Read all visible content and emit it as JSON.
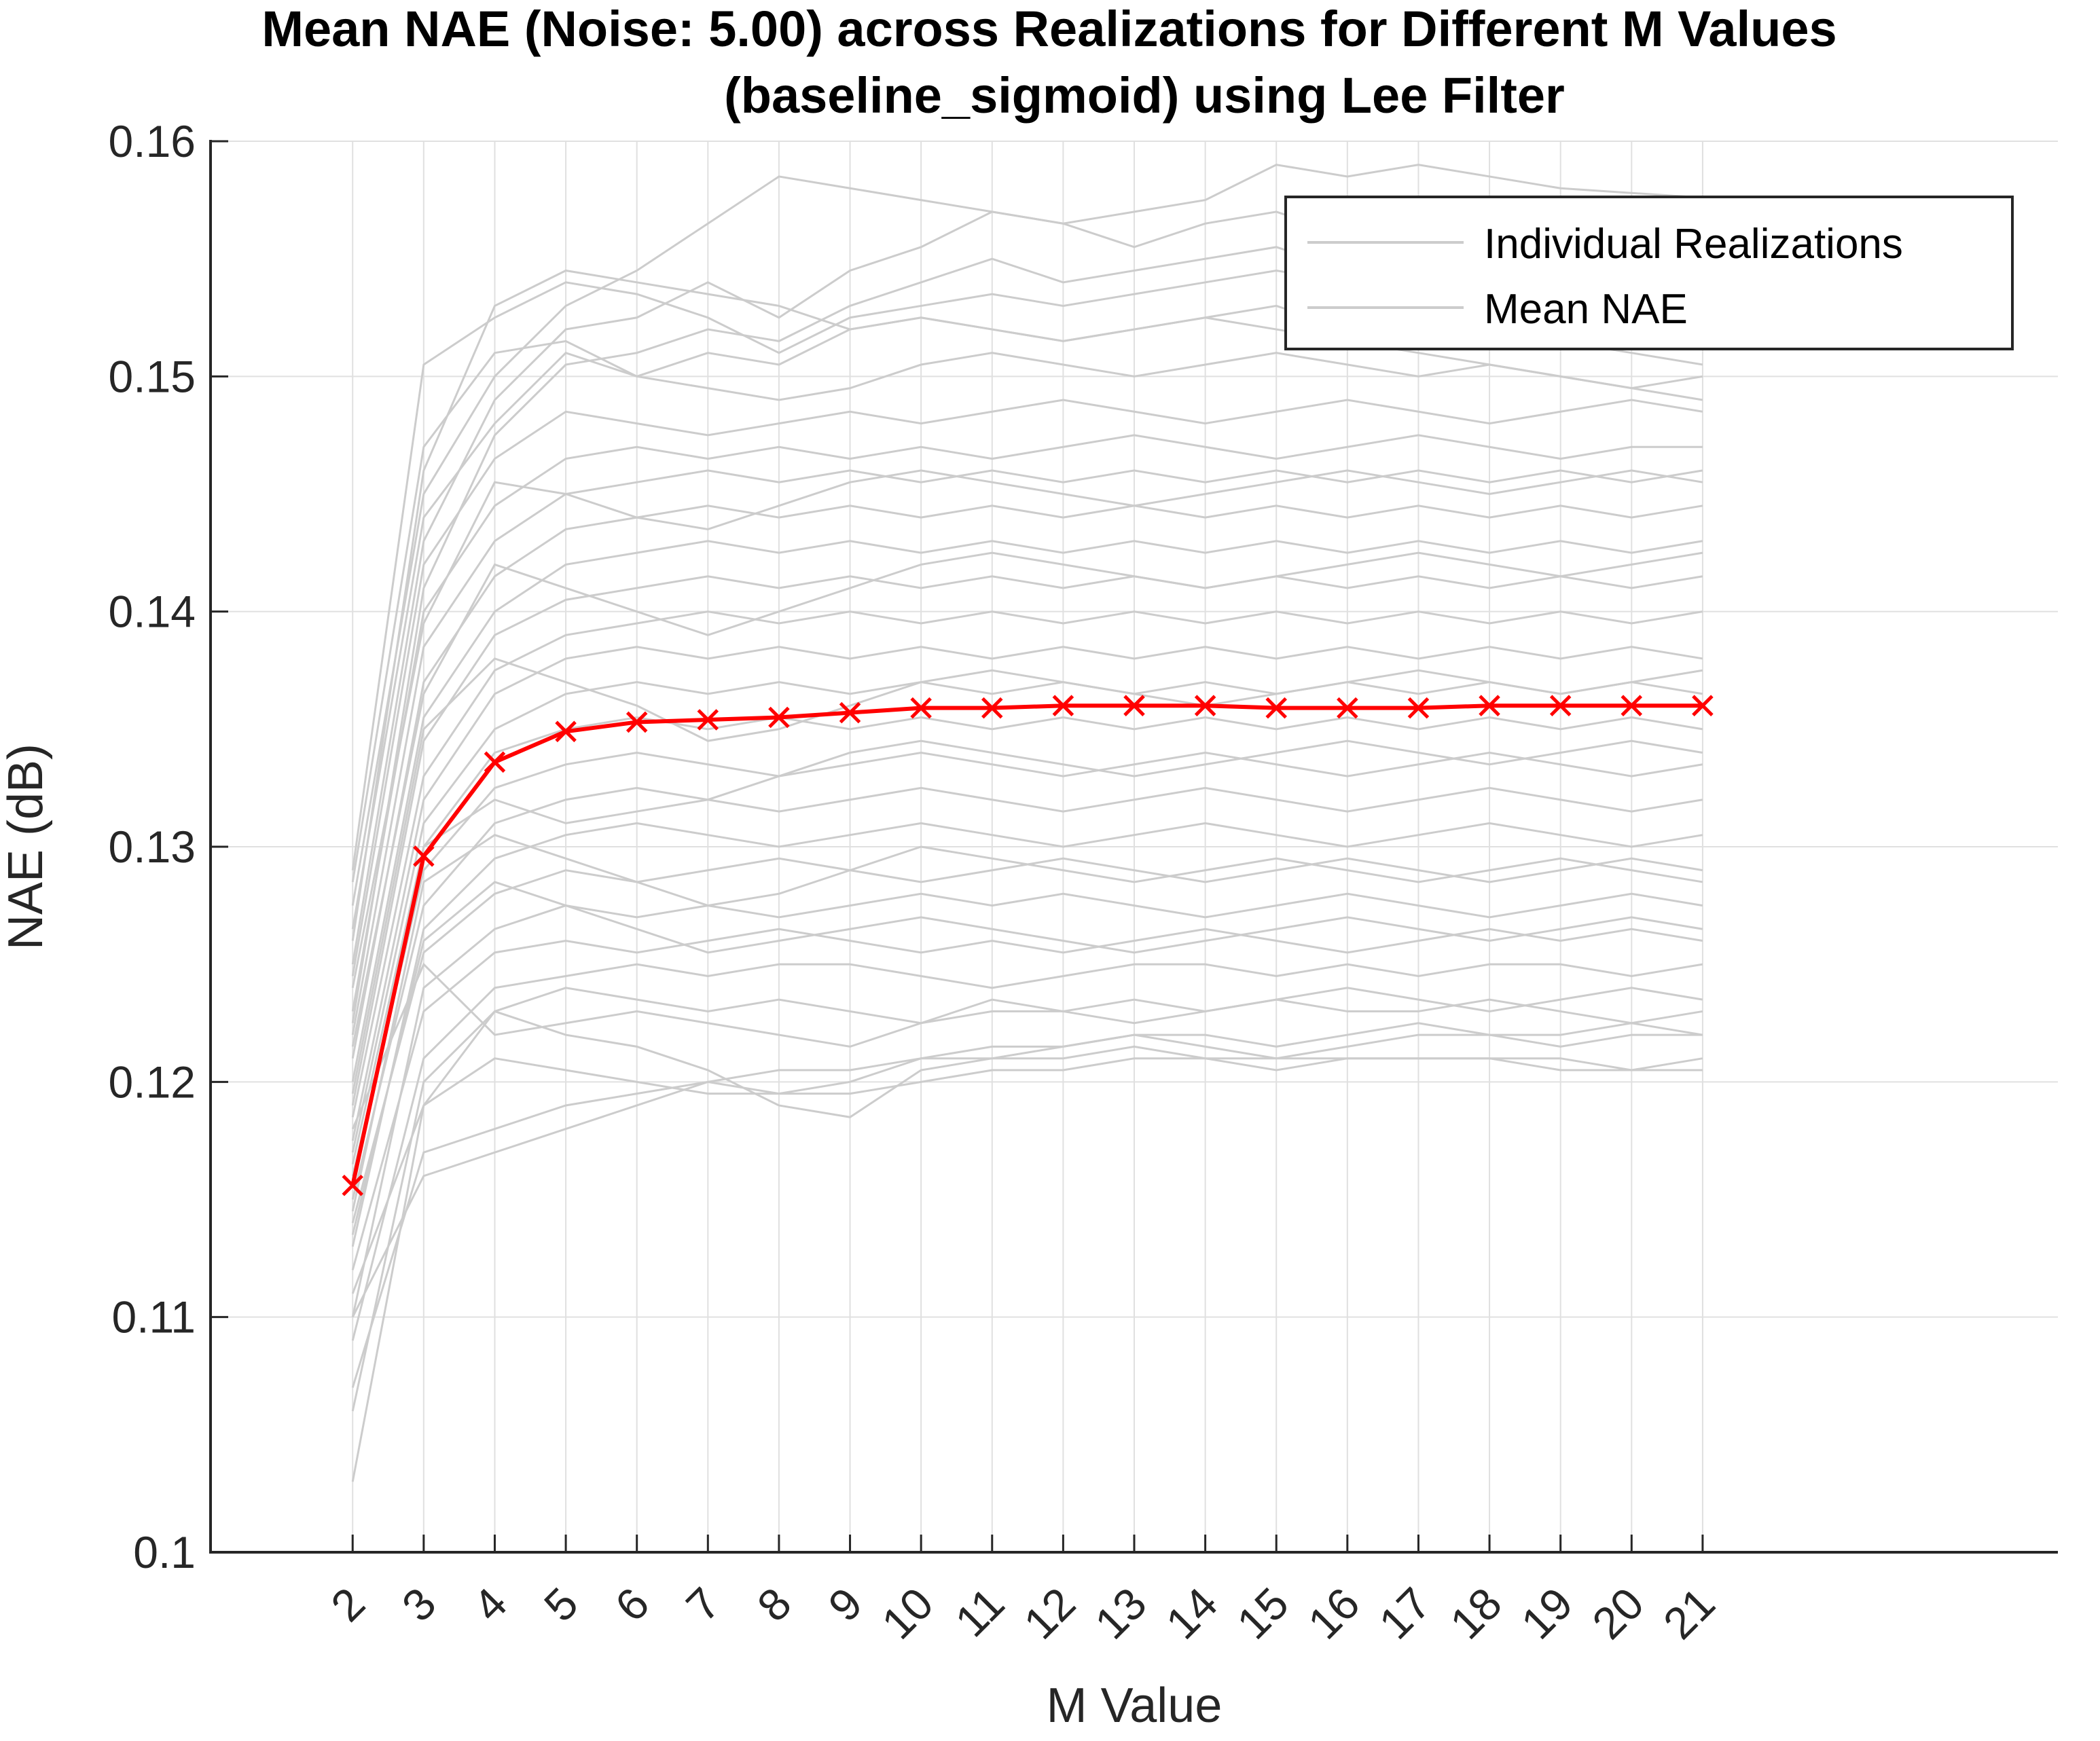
{
  "chart_data": {
    "type": "line",
    "title": "Mean NAE (Noise: 5.00) across Realizations for Different M Values",
    "subtitle": "(baseline_sigmoid) using Lee Filter",
    "xlabel": "M Value",
    "ylabel": "NAE (dB)",
    "xlim": [
      0,
      26
    ],
    "ylim": [
      0.1,
      0.16
    ],
    "x": [
      2,
      3,
      4,
      5,
      6,
      7,
      8,
      9,
      10,
      11,
      12,
      13,
      14,
      15,
      16,
      17,
      18,
      19,
      20,
      21
    ],
    "x_ticks": [
      "2",
      "3",
      "4",
      "5",
      "6",
      "7",
      "8",
      "9",
      "10",
      "11",
      "12",
      "13",
      "14",
      "15",
      "16",
      "17",
      "18",
      "19",
      "20",
      "21"
    ],
    "y_ticks": [
      "0.1",
      "0.11",
      "0.12",
      "0.13",
      "0.14",
      "0.15",
      "0.16"
    ],
    "y_tick_values": [
      0.1,
      0.11,
      0.12,
      0.13,
      0.14,
      0.15,
      0.16
    ],
    "grid": true,
    "legend_position": "top-right",
    "series": [
      {
        "name": "Mean NAE",
        "color": "#ff0000",
        "marker": "x",
        "values": [
          0.1156,
          0.1296,
          0.1336,
          0.1349,
          0.1353,
          0.1354,
          0.1355,
          0.1357,
          0.1359,
          0.1359,
          0.136,
          0.136,
          0.136,
          0.1359,
          0.1359,
          0.1359,
          0.136,
          0.136,
          0.136,
          0.136
        ]
      }
    ],
    "realizations": {
      "name": "Individual Realizations",
      "color": "#cccccc",
      "lines": [
        [
          0.103,
          0.119,
          0.121,
          0.1205,
          0.12,
          0.1195,
          0.1195,
          0.12,
          0.121,
          0.121,
          0.121,
          0.1215,
          0.121,
          0.121,
          0.121,
          0.121,
          0.121,
          0.1205,
          0.1205,
          0.1205
        ],
        [
          0.107,
          0.117,
          0.118,
          0.119,
          0.1195,
          0.12,
          0.1195,
          0.1195,
          0.12,
          0.1205,
          0.1205,
          0.121,
          0.121,
          0.1205,
          0.121,
          0.121,
          0.121,
          0.121,
          0.1205,
          0.121
        ],
        [
          0.111,
          0.119,
          0.123,
          0.122,
          0.1215,
          0.1205,
          0.119,
          0.1185,
          0.1205,
          0.121,
          0.1215,
          0.122,
          0.1215,
          0.121,
          0.1215,
          0.122,
          0.122,
          0.1215,
          0.122,
          0.122
        ],
        [
          0.106,
          0.12,
          0.123,
          0.124,
          0.1235,
          0.123,
          0.1235,
          0.123,
          0.1225,
          0.123,
          0.123,
          0.1235,
          0.123,
          0.1235,
          0.123,
          0.123,
          0.1235,
          0.123,
          0.1225,
          0.123
        ],
        [
          0.109,
          0.121,
          0.124,
          0.1245,
          0.125,
          0.1245,
          0.125,
          0.125,
          0.1245,
          0.124,
          0.1245,
          0.125,
          0.125,
          0.1245,
          0.125,
          0.1245,
          0.125,
          0.125,
          0.1245,
          0.125
        ],
        [
          0.112,
          0.123,
          0.1255,
          0.126,
          0.1255,
          0.126,
          0.1265,
          0.126,
          0.1255,
          0.126,
          0.1255,
          0.126,
          0.1265,
          0.126,
          0.1255,
          0.126,
          0.1265,
          0.126,
          0.1265,
          0.126
        ],
        [
          0.11,
          0.124,
          0.1265,
          0.1275,
          0.127,
          0.1275,
          0.127,
          0.1275,
          0.128,
          0.1275,
          0.128,
          0.1275,
          0.127,
          0.1275,
          0.128,
          0.1275,
          0.127,
          0.1275,
          0.128,
          0.1275
        ],
        [
          0.114,
          0.1255,
          0.128,
          0.129,
          0.1285,
          0.129,
          0.1295,
          0.129,
          0.1285,
          0.129,
          0.1295,
          0.129,
          0.1285,
          0.129,
          0.1295,
          0.129,
          0.1285,
          0.129,
          0.1295,
          0.129
        ],
        [
          0.113,
          0.1265,
          0.1295,
          0.1305,
          0.131,
          0.1305,
          0.13,
          0.1305,
          0.131,
          0.1305,
          0.13,
          0.1305,
          0.131,
          0.1305,
          0.13,
          0.1305,
          0.131,
          0.1305,
          0.13,
          0.1305
        ],
        [
          0.115,
          0.1275,
          0.131,
          0.132,
          0.1325,
          0.132,
          0.1315,
          0.132,
          0.1325,
          0.132,
          0.1315,
          0.132,
          0.1325,
          0.132,
          0.1315,
          0.132,
          0.1325,
          0.132,
          0.1315,
          0.132
        ],
        [
          0.116,
          0.129,
          0.1325,
          0.1335,
          0.134,
          0.1335,
          0.133,
          0.1335,
          0.134,
          0.1335,
          0.133,
          0.1335,
          0.134,
          0.1335,
          0.133,
          0.1335,
          0.134,
          0.1335,
          0.133,
          0.1335
        ],
        [
          0.1155,
          0.13,
          0.134,
          0.135,
          0.1355,
          0.135,
          0.1355,
          0.135,
          0.1355,
          0.135,
          0.1355,
          0.135,
          0.1355,
          0.135,
          0.1355,
          0.135,
          0.1355,
          0.135,
          0.1355,
          0.135
        ],
        [
          0.117,
          0.131,
          0.135,
          0.1365,
          0.137,
          0.1365,
          0.137,
          0.1365,
          0.137,
          0.1365,
          0.137,
          0.1365,
          0.137,
          0.1365,
          0.137,
          0.1365,
          0.137,
          0.1365,
          0.137,
          0.1365
        ],
        [
          0.1175,
          0.132,
          0.1365,
          0.138,
          0.1385,
          0.138,
          0.1385,
          0.138,
          0.1385,
          0.138,
          0.1385,
          0.138,
          0.1385,
          0.138,
          0.1385,
          0.138,
          0.1385,
          0.138,
          0.1385,
          0.138
        ],
        [
          0.1185,
          0.133,
          0.1375,
          0.139,
          0.1395,
          0.14,
          0.1395,
          0.14,
          0.1395,
          0.14,
          0.1395,
          0.14,
          0.1395,
          0.14,
          0.1395,
          0.14,
          0.1395,
          0.14,
          0.1395,
          0.14
        ],
        [
          0.119,
          0.1345,
          0.139,
          0.1405,
          0.141,
          0.1415,
          0.141,
          0.1415,
          0.141,
          0.1415,
          0.141,
          0.1415,
          0.141,
          0.1415,
          0.141,
          0.1415,
          0.141,
          0.1415,
          0.141,
          0.1415
        ],
        [
          0.12,
          0.1355,
          0.14,
          0.142,
          0.1425,
          0.143,
          0.1425,
          0.143,
          0.1425,
          0.143,
          0.1425,
          0.143,
          0.1425,
          0.143,
          0.1425,
          0.143,
          0.1425,
          0.143,
          0.1425,
          0.143
        ],
        [
          0.121,
          0.137,
          0.1415,
          0.1435,
          0.144,
          0.1445,
          0.144,
          0.1445,
          0.144,
          0.1445,
          0.144,
          0.1445,
          0.144,
          0.1445,
          0.144,
          0.1445,
          0.144,
          0.1445,
          0.144,
          0.1445
        ],
        [
          0.122,
          0.1385,
          0.143,
          0.145,
          0.1455,
          0.146,
          0.1455,
          0.146,
          0.1455,
          0.146,
          0.1455,
          0.146,
          0.1455,
          0.146,
          0.1455,
          0.146,
          0.1455,
          0.146,
          0.1455,
          0.146
        ],
        [
          0.123,
          0.14,
          0.1445,
          0.1465,
          0.147,
          0.1465,
          0.147,
          0.1465,
          0.147,
          0.1465,
          0.147,
          0.1475,
          0.147,
          0.1465,
          0.147,
          0.1475,
          0.147,
          0.1465,
          0.147,
          0.147
        ],
        [
          0.1245,
          0.142,
          0.1465,
          0.1485,
          0.148,
          0.1475,
          0.148,
          0.1485,
          0.148,
          0.1485,
          0.149,
          0.1485,
          0.148,
          0.1485,
          0.149,
          0.1485,
          0.148,
          0.1485,
          0.149,
          0.1485
        ],
        [
          0.1265,
          0.144,
          0.148,
          0.151,
          0.15,
          0.1495,
          0.149,
          0.1495,
          0.1505,
          0.151,
          0.1505,
          0.15,
          0.1505,
          0.151,
          0.1505,
          0.15,
          0.1505,
          0.15,
          0.1495,
          0.15
        ],
        [
          0.1285,
          0.147,
          0.151,
          0.1515,
          0.15,
          0.151,
          0.1505,
          0.152,
          0.1525,
          0.152,
          0.1515,
          0.152,
          0.1525,
          0.153,
          0.152,
          0.1515,
          0.152,
          0.1515,
          0.151,
          0.1505
        ],
        [
          0.129,
          0.1505,
          0.1525,
          0.154,
          0.1535,
          0.1525,
          0.151,
          0.1525,
          0.153,
          0.1535,
          0.153,
          0.1535,
          0.154,
          0.1545,
          0.154,
          0.1535,
          0.154,
          0.1535,
          0.153,
          0.1525
        ],
        [
          0.126,
          0.146,
          0.153,
          0.1545,
          0.154,
          0.1535,
          0.153,
          0.152,
          0.1525,
          0.152,
          0.1515,
          0.152,
          0.1525,
          0.152,
          0.1515,
          0.151,
          0.1505,
          0.15,
          0.1495,
          0.149
        ],
        [
          0.1275,
          0.145,
          0.15,
          0.153,
          0.1545,
          0.1565,
          0.1585,
          0.158,
          0.1575,
          0.157,
          0.1565,
          0.157,
          0.1575,
          0.159,
          0.1585,
          0.159,
          0.1585,
          0.158,
          0.1578,
          0.1576
        ],
        [
          0.125,
          0.143,
          0.149,
          0.152,
          0.1525,
          0.154,
          0.1525,
          0.1545,
          0.1555,
          0.157,
          0.1565,
          0.1555,
          0.1565,
          0.157,
          0.156,
          0.156,
          0.1565,
          0.156,
          0.1555,
          0.155
        ],
        [
          0.1225,
          0.141,
          0.1475,
          0.1505,
          0.151,
          0.152,
          0.1515,
          0.153,
          0.154,
          0.155,
          0.154,
          0.1545,
          0.155,
          0.1555,
          0.1545,
          0.154,
          0.1535,
          0.153,
          0.1525,
          0.152
        ],
        [
          0.11,
          0.116,
          0.117,
          0.118,
          0.119,
          0.12,
          0.1205,
          0.1205,
          0.121,
          0.1215,
          0.1215,
          0.122,
          0.122,
          0.1215,
          0.122,
          0.1225,
          0.122,
          0.122,
          0.1225,
          0.122
        ],
        [
          0.118,
          0.125,
          0.122,
          0.1225,
          0.123,
          0.1225,
          0.122,
          0.1215,
          0.1225,
          0.1235,
          0.123,
          0.1225,
          0.123,
          0.1235,
          0.124,
          0.1235,
          0.123,
          0.1235,
          0.124,
          0.1235
        ],
        [
          0.1145,
          0.1285,
          0.1305,
          0.1295,
          0.1285,
          0.1275,
          0.128,
          0.129,
          0.13,
          0.1295,
          0.129,
          0.1285,
          0.129,
          0.1295,
          0.129,
          0.1285,
          0.129,
          0.1295,
          0.129,
          0.1285
        ],
        [
          0.1195,
          0.135,
          0.138,
          0.137,
          0.136,
          0.1345,
          0.135,
          0.136,
          0.137,
          0.1375,
          0.137,
          0.1365,
          0.136,
          0.1365,
          0.137,
          0.1375,
          0.137,
          0.1365,
          0.137,
          0.1375
        ],
        [
          0.1215,
          0.1365,
          0.142,
          0.141,
          0.14,
          0.139,
          0.14,
          0.141,
          0.142,
          0.1425,
          0.142,
          0.1415,
          0.141,
          0.1415,
          0.142,
          0.1425,
          0.142,
          0.1415,
          0.142,
          0.1425
        ],
        [
          0.124,
          0.1395,
          0.1455,
          0.145,
          0.144,
          0.1435,
          0.1445,
          0.1455,
          0.146,
          0.1455,
          0.145,
          0.1445,
          0.145,
          0.1455,
          0.146,
          0.1455,
          0.145,
          0.1455,
          0.146,
          0.1455
        ],
        [
          0.1165,
          0.13,
          0.132,
          0.131,
          0.1315,
          0.132,
          0.133,
          0.134,
          0.1345,
          0.134,
          0.1335,
          0.133,
          0.1335,
          0.134,
          0.1345,
          0.134,
          0.1335,
          0.134,
          0.1345,
          0.134
        ],
        [
          0.1135,
          0.126,
          0.1285,
          0.1275,
          0.1265,
          0.1255,
          0.126,
          0.1265,
          0.127,
          0.1265,
          0.126,
          0.1255,
          0.126,
          0.1265,
          0.127,
          0.1265,
          0.126,
          0.1265,
          0.127,
          0.1265
        ]
      ]
    }
  }
}
